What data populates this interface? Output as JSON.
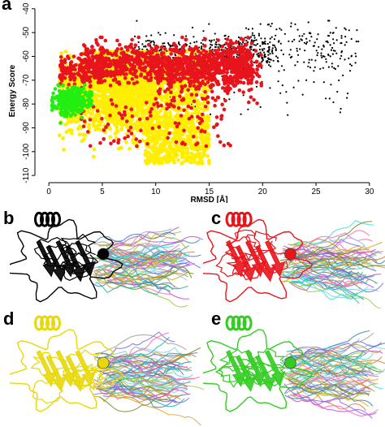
{
  "panels": {
    "a": "a",
    "b": "b",
    "c": "c",
    "d": "d",
    "e": "e"
  },
  "colors": {
    "black": "#000000",
    "red": "#e8141c",
    "yellow": "#ffee00",
    "green": "#22ee11"
  },
  "chart_data": {
    "type": "scatter",
    "title": "",
    "xlabel": "RMSD [Å]",
    "ylabel": "Energy Score",
    "xlim": [
      -1,
      31
    ],
    "ylim": [
      -112,
      -37
    ],
    "xticks": [
      0,
      5,
      10,
      15,
      20,
      25,
      30
    ],
    "yticks": [
      -40,
      -50,
      -60,
      -70,
      -80,
      -90,
      -100,
      -110
    ],
    "grid": false,
    "series": [
      {
        "color": "#000000",
        "x_range": [
          8,
          29
        ],
        "y_range": [
          -100,
          -45
        ],
        "cluster_center": [
          17,
          -58
        ],
        "point_count": 700
      },
      {
        "color": "#e8141c",
        "x_range": [
          1,
          23
        ],
        "y_range": [
          -98,
          -52
        ],
        "cluster_center": [
          11,
          -64
        ],
        "point_count": 1500
      },
      {
        "color": "#ffee00",
        "x_range": [
          0.5,
          17
        ],
        "y_range": [
          -107,
          -58
        ],
        "cluster_center": [
          9,
          -75
        ],
        "point_count": 2600
      },
      {
        "color": "#22ee11",
        "x_range": [
          0.3,
          4
        ],
        "y_range": [
          -88,
          -72
        ],
        "cluster_center": [
          2,
          -79
        ],
        "point_count": 280
      }
    ]
  },
  "structures": {
    "b": {
      "main_color": "#000000"
    },
    "c": {
      "main_color": "#e8141c"
    },
    "d": {
      "main_color": "#e8d80a"
    },
    "e": {
      "main_color": "#33cc22"
    }
  }
}
